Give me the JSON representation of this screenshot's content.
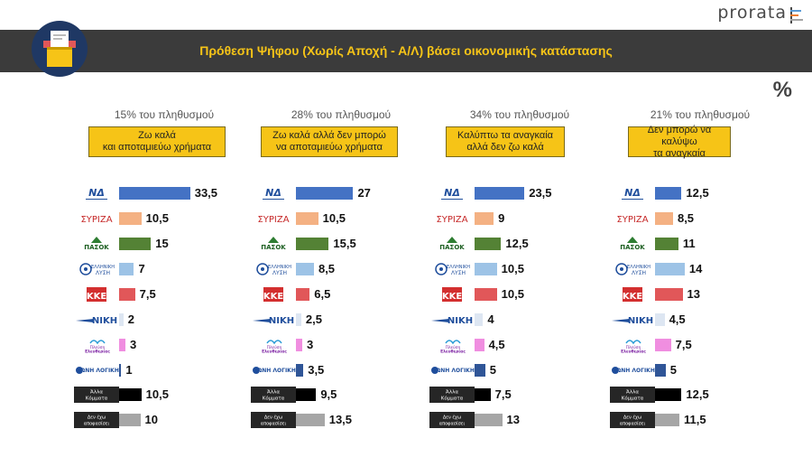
{
  "brand": "prorata",
  "title": "Πρόθεση Ψήφου (Χωρίς Αποχή - Α/Λ) βάσει οικονομικής κατάστασης",
  "unit": "%",
  "parties": [
    {
      "name": "ΝΔ",
      "icon": "nd-logo"
    },
    {
      "name": "ΣΥΡΙΖΑ",
      "icon": "syriza-logo"
    },
    {
      "name": "ΠΑΣΟΚ",
      "icon": "pasok-logo"
    },
    {
      "name": "Ελληνική Λύση",
      "icon": "elliniki-lysi-logo"
    },
    {
      "name": "ΚΚΕ",
      "icon": "kke-logo"
    },
    {
      "name": "ΝΙΚΗ",
      "icon": "niki-logo"
    },
    {
      "name": "Πλεύση Ελευθερίας",
      "icon": "plefsi-logo"
    },
    {
      "name": "ΦΩΝΗ ΛΟΓΙΚΗΣ",
      "icon": "foni-logikis-logo"
    },
    {
      "name": "Άλλα Κόμματα",
      "icon": "alla-label"
    },
    {
      "name": "Δεν έχω αποφασίσει",
      "icon": "den-exo-label"
    }
  ],
  "colors": [
    "#4472c4",
    "#f4b183",
    "#548235",
    "#9dc3e6",
    "#e15759",
    "#dde6f2",
    "#f08ee0",
    "#2f5597",
    "#000000",
    "#a6a6a6"
  ],
  "chart_data": [
    {
      "type": "bar",
      "population": "15% του πληθυσμού",
      "header": [
        "Ζω καλά",
        "και αποταμιεύω χρήματα"
      ],
      "categories": [
        "ΝΔ",
        "ΣΥΡΙΖΑ",
        "ΠΑΣΟΚ",
        "Ελληνική Λύση",
        "ΚΚΕ",
        "ΝΙΚΗ",
        "Πλεύση Ελευθερίας",
        "ΦΩΝΗ ΛΟΓΙΚΗΣ",
        "Άλλα Κόμματα",
        "Δεν έχω αποφασίσει"
      ],
      "values": [
        33.5,
        10.5,
        15,
        7,
        7.5,
        2,
        3,
        1,
        10.5,
        10
      ],
      "labels": [
        "33,5",
        "10,5",
        "15",
        "7",
        "7,5",
        "2",
        "3",
        "1",
        "10,5",
        "10"
      ]
    },
    {
      "type": "bar",
      "population": "28% του πληθυσμού",
      "header": [
        "Ζω καλά αλλά δεν μπορώ",
        "να αποταμιεύω χρήματα"
      ],
      "categories": [
        "ΝΔ",
        "ΣΥΡΙΖΑ",
        "ΠΑΣΟΚ",
        "Ελληνική Λύση",
        "ΚΚΕ",
        "ΝΙΚΗ",
        "Πλεύση Ελευθερίας",
        "ΦΩΝΗ ΛΟΓΙΚΗΣ",
        "Άλλα Κόμματα",
        "Δεν έχω αποφασίσει"
      ],
      "values": [
        27,
        10.5,
        15.5,
        8.5,
        6.5,
        2.5,
        3,
        3.5,
        9.5,
        13.5
      ],
      "labels": [
        "27",
        "10,5",
        "15,5",
        "8,5",
        "6,5",
        "2,5",
        "3",
        "3,5",
        "9,5",
        "13,5"
      ]
    },
    {
      "type": "bar",
      "population": "34% του πληθυσμού",
      "header": [
        "Καλύπτω τα αναγκαία",
        "αλλά δεν ζω καλά"
      ],
      "categories": [
        "ΝΔ",
        "ΣΥΡΙΖΑ",
        "ΠΑΣΟΚ",
        "Ελληνική Λύση",
        "ΚΚΕ",
        "ΝΙΚΗ",
        "Πλεύση Ελευθερίας",
        "ΦΩΝΗ ΛΟΓΙΚΗΣ",
        "Άλλα Κόμματα",
        "Δεν έχω αποφασίσει"
      ],
      "values": [
        23.5,
        9,
        12.5,
        10.5,
        10.5,
        4,
        4.5,
        5,
        7.5,
        13
      ],
      "labels": [
        "23,5",
        "9",
        "12,5",
        "10,5",
        "10,5",
        "4",
        "4,5",
        "5",
        "7,5",
        "13"
      ]
    },
    {
      "type": "bar",
      "population": "21% του πληθυσμού",
      "header": [
        "Δεν μπορώ να καλύψω",
        "τα αναγκαία"
      ],
      "categories": [
        "ΝΔ",
        "ΣΥΡΙΖΑ",
        "ΠΑΣΟΚ",
        "Ελληνική Λύση",
        "ΚΚΕ",
        "ΝΙΚΗ",
        "Πλεύση Ελευθερίας",
        "ΦΩΝΗ ΛΟΓΙΚΗΣ",
        "Άλλα Κόμματα",
        "Δεν έχω αποφασίσει"
      ],
      "values": [
        12.5,
        8.5,
        11,
        14,
        13,
        4.5,
        7.5,
        5,
        12.5,
        11.5
      ],
      "labels": [
        "12,5",
        "8,5",
        "11",
        "14",
        "13",
        "4,5",
        "7,5",
        "5",
        "12,5",
        "11,5"
      ]
    }
  ]
}
